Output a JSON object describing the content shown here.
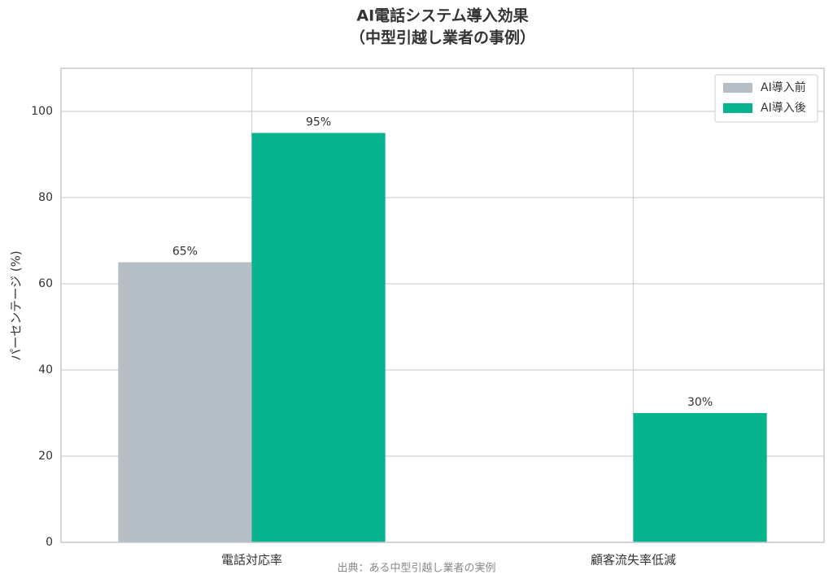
{
  "chart_data": {
    "type": "bar",
    "title": "AI電話システム導入効果",
    "subtitle": "（中型引越し業者の事例）",
    "y_label": "パーセンテージ (%)",
    "source": "出典：ある中型引越し業者の実例",
    "categories": [
      "電話対応率",
      "顧客流失率低減"
    ],
    "series": [
      {
        "name": "AI導入前",
        "color": "#b5bec4",
        "values": [
          65,
          null
        ],
        "value_labels": [
          "65%",
          null
        ]
      },
      {
        "name": "AI導入後",
        "color": "#05b38e",
        "values": [
          95,
          30
        ],
        "value_labels": [
          "95%",
          "30%"
        ]
      }
    ],
    "ylim": [
      0,
      110
    ],
    "yticks": [
      0,
      20,
      40,
      60,
      80,
      100
    ],
    "grid": true,
    "legend": "upper right"
  }
}
